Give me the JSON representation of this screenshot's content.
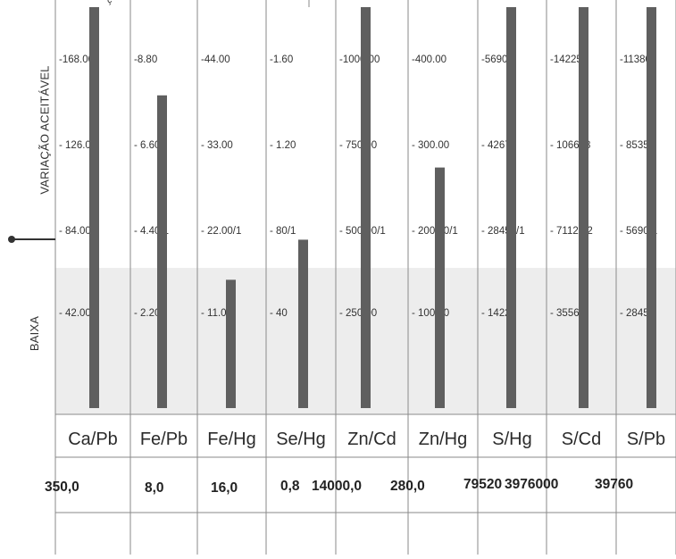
{
  "side_labels": {
    "acceptable": "VARIAÇÃO ACEITÁVEL",
    "low": "BAIXA"
  },
  "chart_data": {
    "type": "bar",
    "categories": [
      "Ca/Pb",
      "Fe/Pb",
      "Fe/Hg",
      "Se/Hg",
      "Zn/Cd",
      "Zn/Hg",
      "S/Hg",
      "S/Cd",
      "S/Pb"
    ],
    "values": [
      350.0,
      8.0,
      16.0,
      0.8,
      14000.0,
      280.0,
      79520,
      3976000,
      39760
    ],
    "value_labels": [
      "350,0",
      "8,0",
      "16,0",
      "0,8",
      "14000,0",
      "280,0",
      "79520",
      "3976000",
      "39760"
    ],
    "bar_fill_fraction": [
      1.0,
      0.78,
      0.32,
      0.42,
      1.0,
      0.6,
      1.0,
      1.0,
      1.0
    ],
    "scale_ticks": [
      [
        "-168.00",
        "- 126.00",
        "- 84.00/1",
        "- 42.00"
      ],
      [
        "-8.80",
        "- 6.60",
        "- 4.40/1",
        "- 2.20"
      ],
      [
        "-44.00",
        "- 33.00",
        "- 22.00/1",
        "- 11.00"
      ],
      [
        "-1.60",
        "- 1.20",
        "- 80/1",
        "- 40"
      ],
      [
        "-1000.00",
        "- 750.00",
        "- 500.00/1",
        "- 250.00"
      ],
      [
        "-400.00",
        "- 300.00",
        "- 200.00/1",
        "- 100.00"
      ],
      [
        "-56900",
        "- 42675",
        "- 28450/1",
        "- 14225"
      ],
      [
        "-142251",
        "- 106688",
        "- 71126/2",
        "- 35563"
      ],
      [
        "-11380",
        "- 8535",
        "- 5690/1",
        "- 2845"
      ]
    ],
    "ratio_line": "- 84.00/1",
    "grid": true,
    "colors": {
      "bar": "#5f5f5f",
      "grid": "#8a8a8a",
      "low_zone": "#ededed"
    }
  }
}
